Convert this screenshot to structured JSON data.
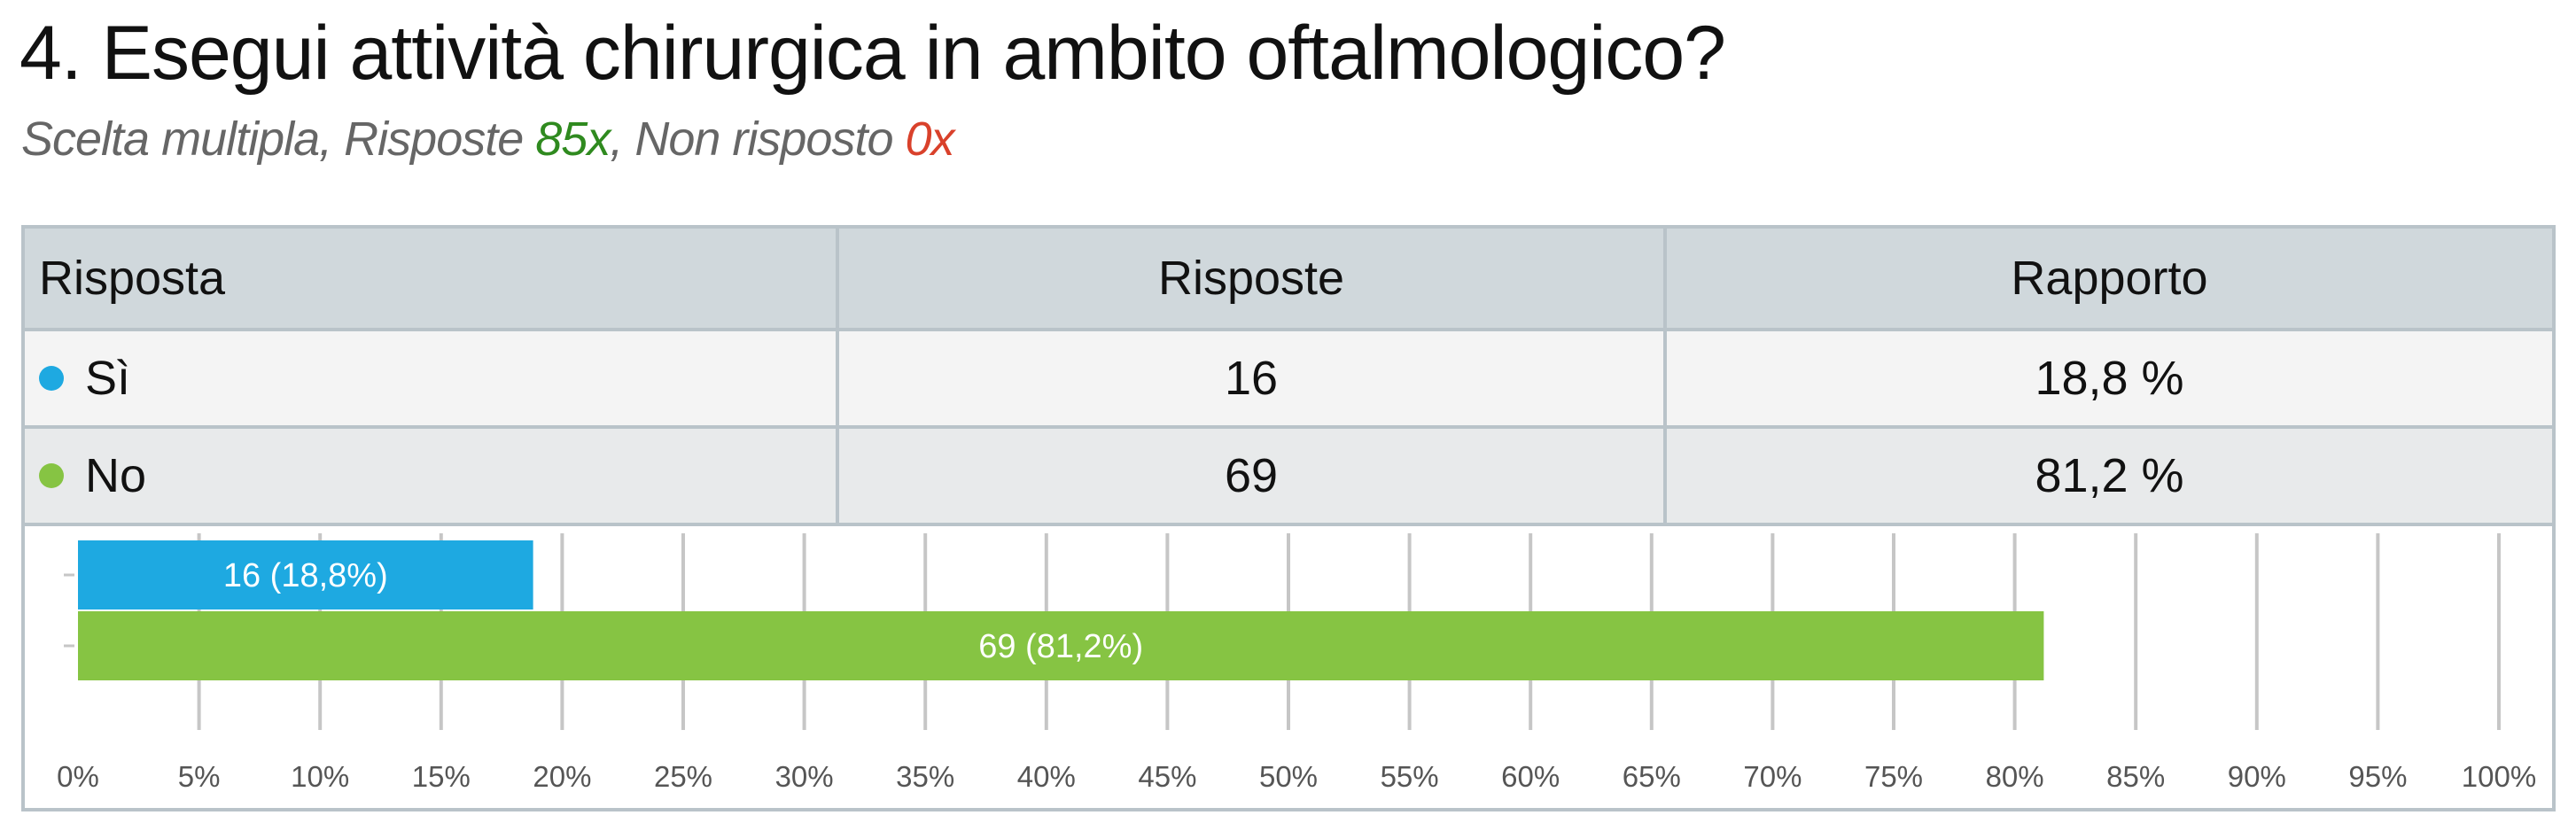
{
  "question": {
    "title": "4. Esegui attività chirurgica in ambito oftalmologico?",
    "type_label": "Scelta multipla, Risposte ",
    "answered_value": "85x",
    "separator": ", Non risposto ",
    "unanswered_value": "0x"
  },
  "table": {
    "headers": [
      "Risposta",
      "Risposte",
      "Rapporto"
    ],
    "rows": [
      {
        "answer": "Sì",
        "count": "16",
        "ratio": "18,8 %",
        "color": "#1ea9e1"
      },
      {
        "answer": "No",
        "count": "69",
        "ratio": "81,2 %",
        "color": "#86c443"
      }
    ]
  },
  "colors": {
    "answered": "#2f8a1f",
    "unanswered": "#d9412b",
    "header_bg": "#d0d8dc",
    "border": "#b9c3c9",
    "grid": "#c6c6c6"
  },
  "chart_data": {
    "type": "bar",
    "orientation": "horizontal",
    "categories": [
      "Sì",
      "No"
    ],
    "values": [
      18.8,
      81.2
    ],
    "data_labels": [
      "16 (18,8%)",
      "69 (81,2%)"
    ],
    "colors": [
      "#1ea9e1",
      "#86c443"
    ],
    "xlim": [
      0,
      100
    ],
    "x_ticks": [
      0,
      5,
      10,
      15,
      20,
      25,
      30,
      35,
      40,
      45,
      50,
      55,
      60,
      65,
      70,
      75,
      80,
      85,
      90,
      95,
      100
    ],
    "x_tick_labels": [
      "0%",
      "5%",
      "10%",
      "15%",
      "20%",
      "25%",
      "30%",
      "35%",
      "40%",
      "45%",
      "50%",
      "55%",
      "60%",
      "65%",
      "70%",
      "75%",
      "80%",
      "85%",
      "90%",
      "95%",
      "100%"
    ],
    "grid": true,
    "title": "",
    "xlabel": "",
    "ylabel": ""
  }
}
